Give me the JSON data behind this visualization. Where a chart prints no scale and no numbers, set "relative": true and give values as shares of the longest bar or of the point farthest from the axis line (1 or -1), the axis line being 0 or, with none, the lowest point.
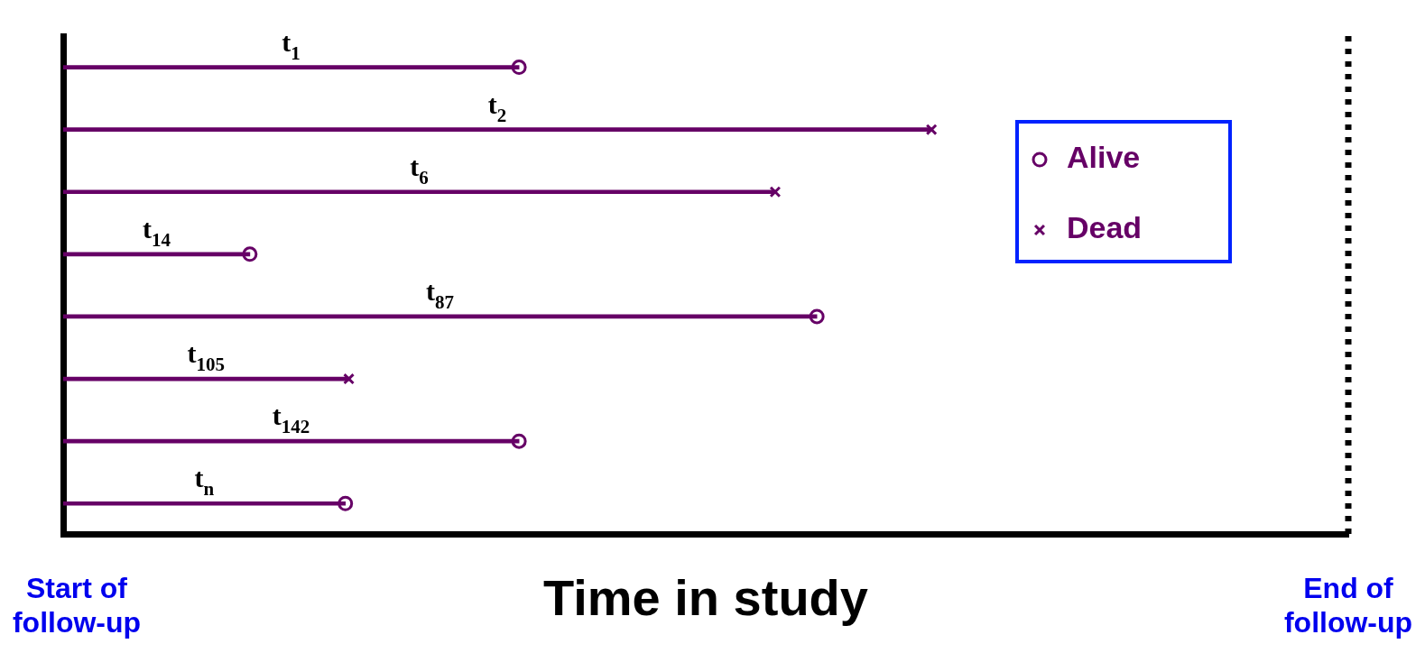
{
  "chart_data": {
    "type": "bar",
    "orientation": "horizontal",
    "relative": true,
    "xlabel": "Time in study",
    "categories": [
      "t$_{1}$",
      "t$_{2}$",
      "t$_{6}$",
      "t$_{14}$",
      "t$_{87}$",
      "t$_{105}$",
      "t$_{142}$",
      "t$_{n}$"
    ],
    "series": [
      {
        "color": "#660066",
        "values": [
          0.525,
          1,
          0.82,
          0.215,
          0.868,
          0.329,
          0.525,
          0.325
        ]
      },
      {
        "type": "scatter",
        "name": "Alive",
        "color": "#660066",
        "marker": "circle",
        "values": [
          0.525,
          null,
          null,
          0.215,
          0.868,
          null,
          0.525,
          0.325
        ]
      },
      {
        "type": "scatter",
        "name": "Dead",
        "color": "#660066",
        "marker": "cross",
        "values": [
          null,
          1,
          0.82,
          null,
          null,
          0.329,
          null,
          null
        ]
      }
    ],
    "legend": "top right",
    "grid": false,
    "tick_labels": false,
    "ref_lines": [
      {
        "axis": "x",
        "value": 1.48,
        "label": "End of follow-up",
        "color": "#000000",
        "line_style": "dotted"
      }
    ],
    "annotations": [
      "Start of follow-up"
    ]
  }
}
